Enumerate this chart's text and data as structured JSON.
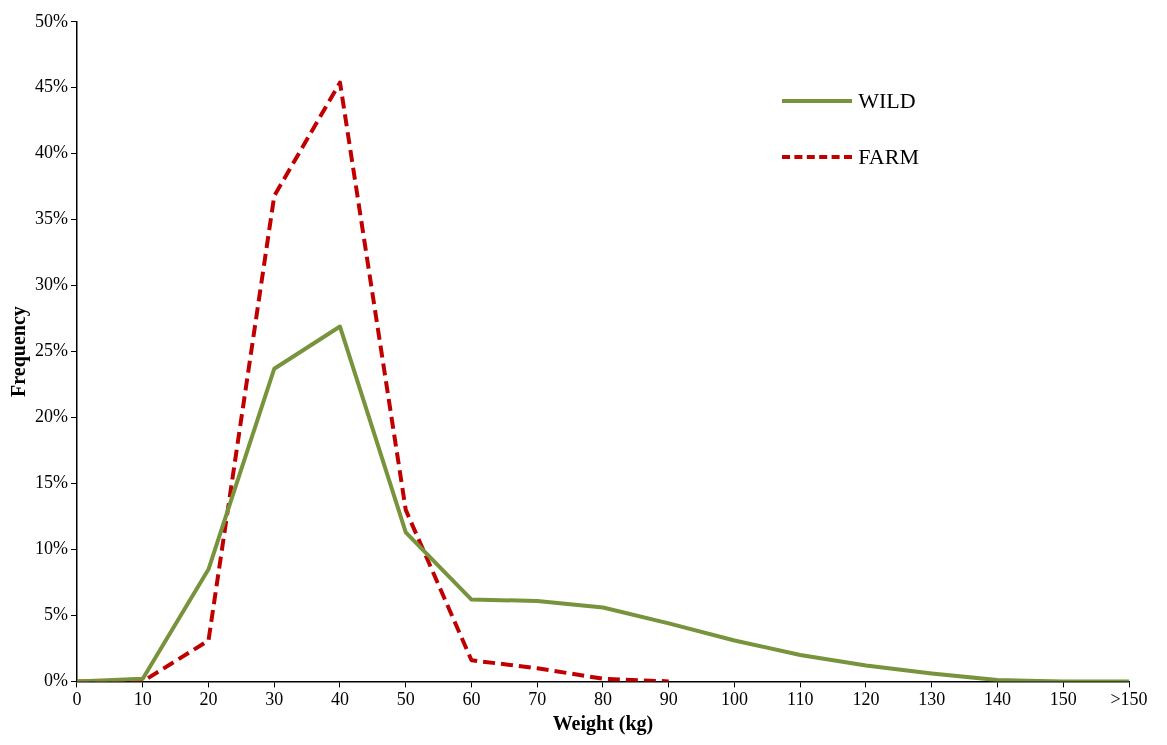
{
  "chart_data": {
    "type": "line",
    "xlabel": "Weight (kg)",
    "ylabel": "Frequency",
    "categories": [
      "0",
      "10",
      "20",
      "30",
      "40",
      "50",
      "60",
      "70",
      "80",
      "90",
      "100",
      "110",
      "120",
      "130",
      "140",
      "150",
      ">150"
    ],
    "series": [
      {
        "name": "WILD",
        "color": "#77933c",
        "line_style": "solid",
        "values": [
          0,
          0.2,
          8.5,
          23.7,
          26.9,
          11.3,
          6.2,
          6.1,
          5.6,
          4.4,
          3.1,
          2.0,
          1.2,
          0.6,
          0.1,
          0,
          0
        ]
      },
      {
        "name": "FARM",
        "color": "#c00000",
        "line_style": "dashed",
        "values": [
          0,
          0,
          3.1,
          36.8,
          45.4,
          13.0,
          1.6,
          1.0,
          0.2,
          0,
          null,
          null,
          null,
          null,
          null,
          null,
          null
        ]
      }
    ],
    "ylim": [
      0,
      50
    ],
    "yticks": [
      {
        "value": 0,
        "label": "0%"
      },
      {
        "value": 5,
        "label": "5%"
      },
      {
        "value": 10,
        "label": "10%"
      },
      {
        "value": 15,
        "label": "15%"
      },
      {
        "value": 20,
        "label": "20%"
      },
      {
        "value": 25,
        "label": "25%"
      },
      {
        "value": 30,
        "label": "30%"
      },
      {
        "value": 35,
        "label": "35%"
      },
      {
        "value": 40,
        "label": "40%"
      },
      {
        "value": 45,
        "label": "45%"
      },
      {
        "value": 50,
        "label": "50%"
      }
    ],
    "grid": false,
    "legend": "top right",
    "marker": "none"
  }
}
